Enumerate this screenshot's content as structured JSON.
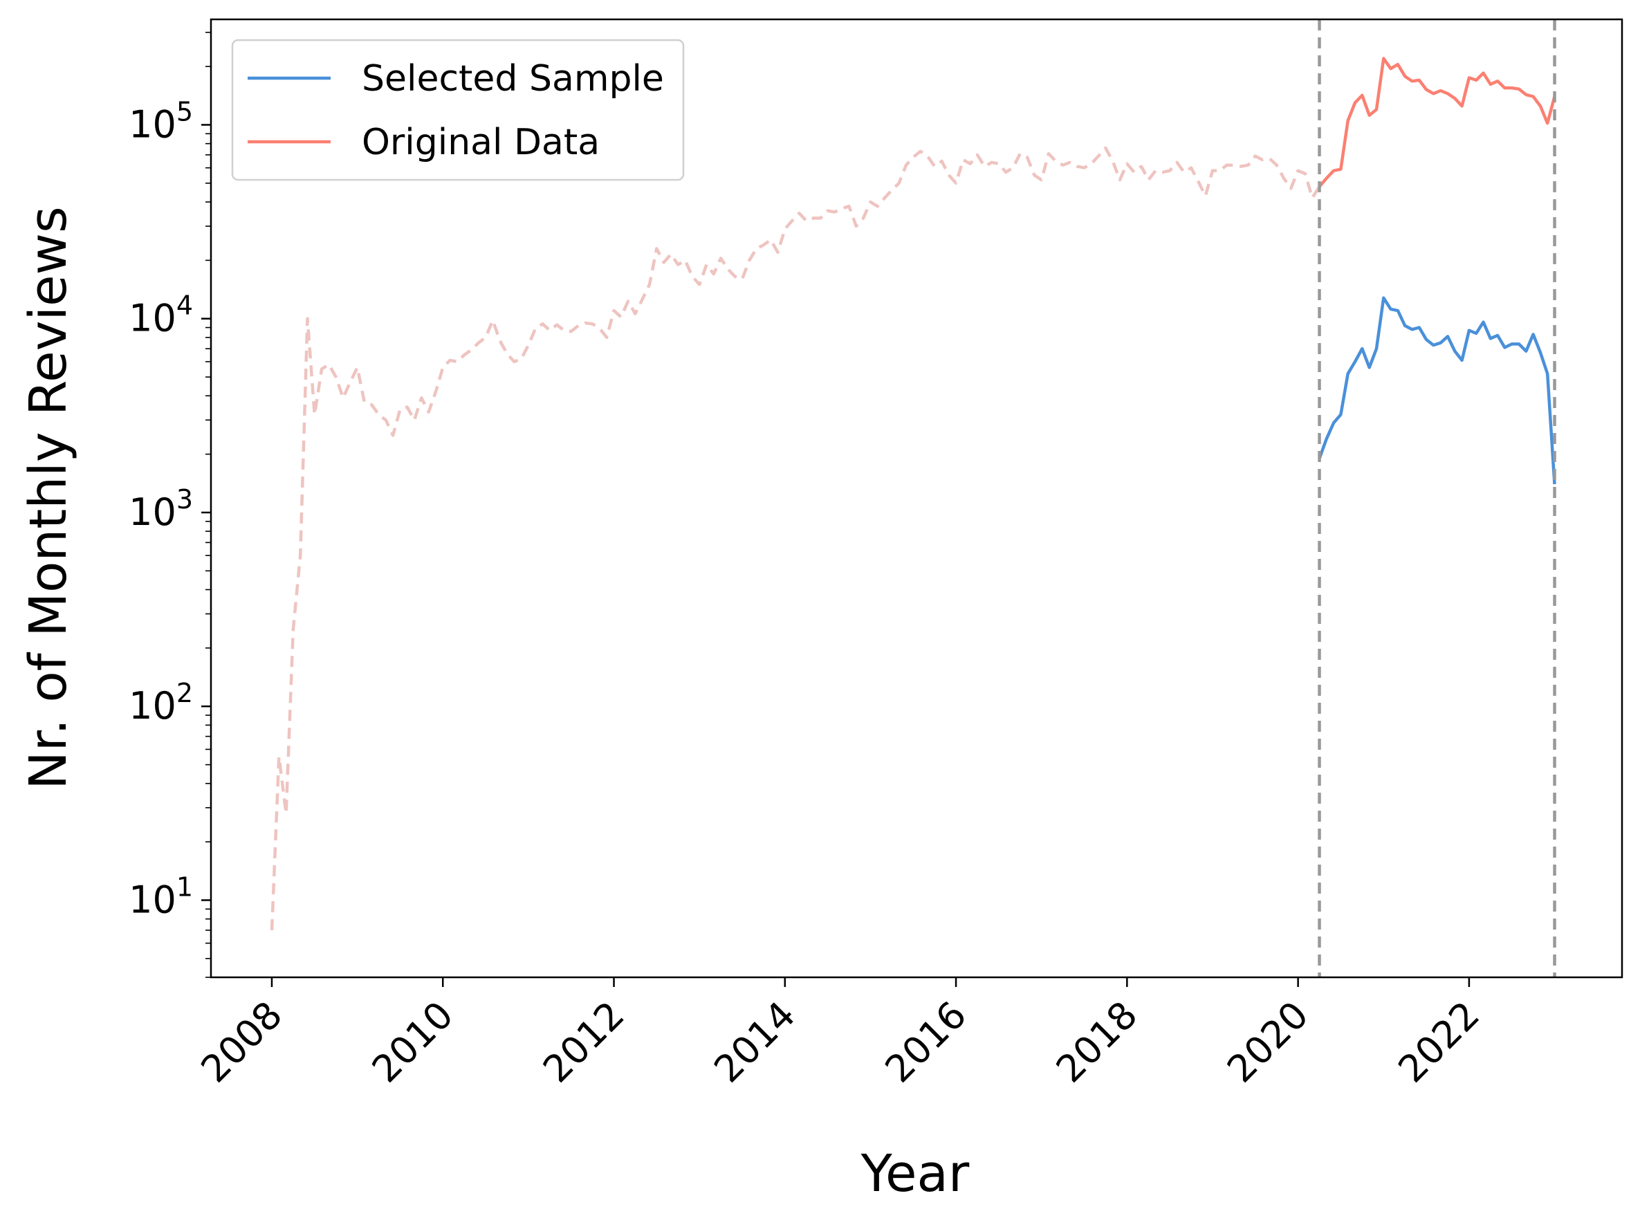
{
  "chart_data": {
    "type": "line",
    "title": "",
    "xlabel": "Year",
    "ylabel": "Nr. of Monthly Reviews",
    "yscale": "log",
    "xlim": [
      "2007-04-15",
      "2023-10-15"
    ],
    "ylim": [
      4,
      350000
    ],
    "grid": false,
    "legend_position": "top-left",
    "xticks": [
      {
        "value": "2008-01-01",
        "label": "2008"
      },
      {
        "value": "2010-01-01",
        "label": "2010"
      },
      {
        "value": "2012-01-01",
        "label": "2012"
      },
      {
        "value": "2014-01-01",
        "label": "2014"
      },
      {
        "value": "2016-01-01",
        "label": "2016"
      },
      {
        "value": "2018-01-01",
        "label": "2018"
      },
      {
        "value": "2020-01-01",
        "label": "2020"
      },
      {
        "value": "2022-01-01",
        "label": "2022"
      }
    ],
    "yticks": [
      {
        "value": 10,
        "base": "10",
        "exp": "1"
      },
      {
        "value": 100,
        "base": "10",
        "exp": "2"
      },
      {
        "value": 1000,
        "base": "10",
        "exp": "3"
      },
      {
        "value": 10000,
        "base": "10",
        "exp": "4"
      },
      {
        "value": 100000,
        "base": "10",
        "exp": "5"
      }
    ],
    "vlines": [
      {
        "x": "2020-04-01",
        "color": "#999999",
        "style": "dashed"
      },
      {
        "x": "2023-01-01",
        "color": "#999999",
        "style": "dashed"
      }
    ],
    "legend": [
      {
        "label": "Selected Sample",
        "color": "#4a90d9"
      },
      {
        "label": "Original Data",
        "color": "#fa8072"
      }
    ],
    "series": [
      {
        "name": "Selected Sample",
        "color": "#4a90d9",
        "style": "solid",
        "points": [
          [
            "2020-04-01",
            1900
          ],
          [
            "2020-05-01",
            2400
          ],
          [
            "2020-06-01",
            2900
          ],
          [
            "2020-07-01",
            3200
          ],
          [
            "2020-08-01",
            5200
          ],
          [
            "2020-09-01",
            6000
          ],
          [
            "2020-10-01",
            7000
          ],
          [
            "2020-11-01",
            5600
          ],
          [
            "2020-12-01",
            7000
          ],
          [
            "2021-01-01",
            12800
          ],
          [
            "2021-02-01",
            11200
          ],
          [
            "2021-03-01",
            11000
          ],
          [
            "2021-04-01",
            9200
          ],
          [
            "2021-05-01",
            8800
          ],
          [
            "2021-06-01",
            9000
          ],
          [
            "2021-07-01",
            7800
          ],
          [
            "2021-08-01",
            7300
          ],
          [
            "2021-09-01",
            7500
          ],
          [
            "2021-10-01",
            8100
          ],
          [
            "2021-11-01",
            6800
          ],
          [
            "2021-12-01",
            6100
          ],
          [
            "2022-01-01",
            8700
          ],
          [
            "2022-02-01",
            8400
          ],
          [
            "2022-03-01",
            9600
          ],
          [
            "2022-04-01",
            7900
          ],
          [
            "2022-05-01",
            8200
          ],
          [
            "2022-06-01",
            7100
          ],
          [
            "2022-07-01",
            7400
          ],
          [
            "2022-08-01",
            7400
          ],
          [
            "2022-09-01",
            6800
          ],
          [
            "2022-10-01",
            8300
          ],
          [
            "2022-11-01",
            6700
          ],
          [
            "2022-12-01",
            5200
          ],
          [
            "2023-01-01",
            1400
          ]
        ]
      },
      {
        "name": "Original Data",
        "color": "#fa8072",
        "style": "solid",
        "points": [
          [
            "2020-04-01",
            48000
          ],
          [
            "2020-05-01",
            53000
          ],
          [
            "2020-06-01",
            58000
          ],
          [
            "2020-07-01",
            59000
          ],
          [
            "2020-08-01",
            105000
          ],
          [
            "2020-09-01",
            130000
          ],
          [
            "2020-10-01",
            142000
          ],
          [
            "2020-11-01",
            112000
          ],
          [
            "2020-12-01",
            120000
          ],
          [
            "2021-01-01",
            220000
          ],
          [
            "2021-02-01",
            195000
          ],
          [
            "2021-03-01",
            205000
          ],
          [
            "2021-04-01",
            178000
          ],
          [
            "2021-05-01",
            168000
          ],
          [
            "2021-06-01",
            170000
          ],
          [
            "2021-07-01",
            152000
          ],
          [
            "2021-08-01",
            145000
          ],
          [
            "2021-09-01",
            150000
          ],
          [
            "2021-10-01",
            145000
          ],
          [
            "2021-11-01",
            137000
          ],
          [
            "2021-12-01",
            125000
          ],
          [
            "2022-01-01",
            175000
          ],
          [
            "2022-02-01",
            170000
          ],
          [
            "2022-03-01",
            185000
          ],
          [
            "2022-04-01",
            162000
          ],
          [
            "2022-05-01",
            168000
          ],
          [
            "2022-06-01",
            155000
          ],
          [
            "2022-07-01",
            155000
          ],
          [
            "2022-08-01",
            153000
          ],
          [
            "2022-09-01",
            143000
          ],
          [
            "2022-10-01",
            140000
          ],
          [
            "2022-11-01",
            125000
          ],
          [
            "2022-12-01",
            102000
          ],
          [
            "2023-01-01",
            140000
          ]
        ]
      },
      {
        "name": "",
        "color": "#eec4c0",
        "style": "dashed",
        "points": [
          [
            "2008-01-01",
            7
          ],
          [
            "2008-02-01",
            55
          ],
          [
            "2008-03-01",
            28
          ],
          [
            "2008-04-01",
            250
          ],
          [
            "2008-05-01",
            600
          ],
          [
            "2008-06-01",
            10000
          ],
          [
            "2008-07-01",
            3200
          ],
          [
            "2008-08-01",
            5500
          ],
          [
            "2008-09-01",
            5800
          ],
          [
            "2008-10-01",
            5000
          ],
          [
            "2008-11-01",
            3900
          ],
          [
            "2008-12-01",
            4700
          ],
          [
            "2009-01-01",
            5600
          ],
          [
            "2009-02-01",
            3700
          ],
          [
            "2009-03-01",
            3600
          ],
          [
            "2009-04-01",
            3200
          ],
          [
            "2009-05-01",
            3000
          ],
          [
            "2009-06-01",
            2500
          ],
          [
            "2009-07-01",
            3400
          ],
          [
            "2009-08-01",
            3500
          ],
          [
            "2009-09-01",
            3000
          ],
          [
            "2009-10-01",
            3900
          ],
          [
            "2009-11-01",
            3300
          ],
          [
            "2009-12-01",
            4200
          ],
          [
            "2010-01-01",
            5600
          ],
          [
            "2010-02-01",
            6100
          ],
          [
            "2010-03-01",
            6000
          ],
          [
            "2010-04-01",
            6500
          ],
          [
            "2010-05-01",
            6900
          ],
          [
            "2010-06-01",
            7500
          ],
          [
            "2010-07-01",
            8000
          ],
          [
            "2010-08-01",
            9800
          ],
          [
            "2010-09-01",
            7700
          ],
          [
            "2010-10-01",
            6600
          ],
          [
            "2010-11-01",
            6000
          ],
          [
            "2010-12-01",
            6200
          ],
          [
            "2011-01-01",
            7300
          ],
          [
            "2011-02-01",
            8900
          ],
          [
            "2011-03-01",
            9400
          ],
          [
            "2011-04-01",
            8700
          ],
          [
            "2011-05-01",
            9300
          ],
          [
            "2011-06-01",
            8700
          ],
          [
            "2011-07-01",
            8600
          ],
          [
            "2011-08-01",
            9200
          ],
          [
            "2011-09-01",
            9500
          ],
          [
            "2011-10-01",
            9400
          ],
          [
            "2011-11-01",
            8900
          ],
          [
            "2011-12-01",
            8000
          ],
          [
            "2012-01-01",
            11000
          ],
          [
            "2012-02-01",
            10200
          ],
          [
            "2012-03-01",
            12300
          ],
          [
            "2012-04-01",
            10600
          ],
          [
            "2012-05-01",
            12600
          ],
          [
            "2012-06-01",
            15000
          ],
          [
            "2012-07-01",
            23000
          ],
          [
            "2012-08-01",
            19500
          ],
          [
            "2012-09-01",
            21500
          ],
          [
            "2012-10-01",
            19000
          ],
          [
            "2012-11-01",
            20000
          ],
          [
            "2012-12-01",
            16500
          ],
          [
            "2013-01-01",
            15000
          ],
          [
            "2013-02-01",
            19000
          ],
          [
            "2013-03-01",
            17000
          ],
          [
            "2013-04-01",
            20500
          ],
          [
            "2013-05-01",
            18000
          ],
          [
            "2013-06-01",
            16500
          ],
          [
            "2013-07-01",
            16000
          ],
          [
            "2013-08-01",
            20000
          ],
          [
            "2013-09-01",
            23000
          ],
          [
            "2013-10-01",
            24000
          ],
          [
            "2013-11-01",
            25500
          ],
          [
            "2013-12-01",
            22000
          ],
          [
            "2014-01-01",
            29000
          ],
          [
            "2014-02-01",
            32000
          ],
          [
            "2014-03-01",
            35000
          ],
          [
            "2014-04-01",
            32000
          ],
          [
            "2014-05-01",
            33000
          ],
          [
            "2014-06-01",
            33000
          ],
          [
            "2014-07-01",
            36000
          ],
          [
            "2014-08-01",
            35500
          ],
          [
            "2014-09-01",
            37000
          ],
          [
            "2014-10-01",
            38000
          ],
          [
            "2014-11-01",
            30000
          ],
          [
            "2014-12-01",
            33000
          ],
          [
            "2015-01-01",
            40000
          ],
          [
            "2015-02-01",
            38000
          ],
          [
            "2015-03-01",
            42000
          ],
          [
            "2015-04-01",
            46000
          ],
          [
            "2015-05-01",
            50000
          ],
          [
            "2015-06-01",
            62000
          ],
          [
            "2015-07-01",
            68000
          ],
          [
            "2015-08-01",
            73000
          ],
          [
            "2015-09-01",
            69000
          ],
          [
            "2015-10-01",
            61000
          ],
          [
            "2015-11-01",
            65000
          ],
          [
            "2015-12-01",
            55000
          ],
          [
            "2016-01-01",
            50000
          ],
          [
            "2016-02-01",
            66000
          ],
          [
            "2016-03-01",
            63000
          ],
          [
            "2016-04-01",
            70000
          ],
          [
            "2016-05-01",
            61000
          ],
          [
            "2016-06-01",
            64000
          ],
          [
            "2016-07-01",
            63000
          ],
          [
            "2016-08-01",
            57000
          ],
          [
            "2016-09-01",
            60000
          ],
          [
            "2016-10-01",
            71000
          ],
          [
            "2016-11-01",
            68000
          ],
          [
            "2016-12-01",
            55000
          ],
          [
            "2017-01-01",
            52000
          ],
          [
            "2017-02-01",
            71000
          ],
          [
            "2017-03-01",
            65000
          ],
          [
            "2017-04-01",
            62000
          ],
          [
            "2017-05-01",
            64000
          ],
          [
            "2017-06-01",
            61000
          ],
          [
            "2017-07-01",
            60000
          ],
          [
            "2017-08-01",
            63000
          ],
          [
            "2017-09-01",
            69000
          ],
          [
            "2017-10-01",
            76000
          ],
          [
            "2017-11-01",
            65000
          ],
          [
            "2017-12-01",
            52000
          ],
          [
            "2018-01-01",
            63000
          ],
          [
            "2018-02-01",
            57000
          ],
          [
            "2018-03-01",
            61000
          ],
          [
            "2018-04-01",
            52000
          ],
          [
            "2018-05-01",
            58000
          ],
          [
            "2018-06-01",
            57000
          ],
          [
            "2018-07-01",
            58000
          ],
          [
            "2018-08-01",
            64000
          ],
          [
            "2018-09-01",
            57000
          ],
          [
            "2018-10-01",
            60000
          ],
          [
            "2018-11-01",
            51000
          ],
          [
            "2018-12-01",
            43000
          ],
          [
            "2019-01-01",
            58000
          ],
          [
            "2019-02-01",
            58000
          ],
          [
            "2019-03-01",
            62000
          ],
          [
            "2019-04-01",
            62000
          ],
          [
            "2019-05-01",
            61000
          ],
          [
            "2019-06-01",
            62000
          ],
          [
            "2019-07-01",
            69000
          ],
          [
            "2019-08-01",
            66000
          ],
          [
            "2019-09-01",
            67000
          ],
          [
            "2019-10-01",
            62000
          ],
          [
            "2019-11-01",
            53000
          ],
          [
            "2019-12-01",
            47000
          ],
          [
            "2020-01-01",
            58000
          ],
          [
            "2020-02-01",
            56000
          ],
          [
            "2020-03-01",
            42000
          ],
          [
            "2020-04-01",
            48000
          ]
        ]
      }
    ]
  }
}
